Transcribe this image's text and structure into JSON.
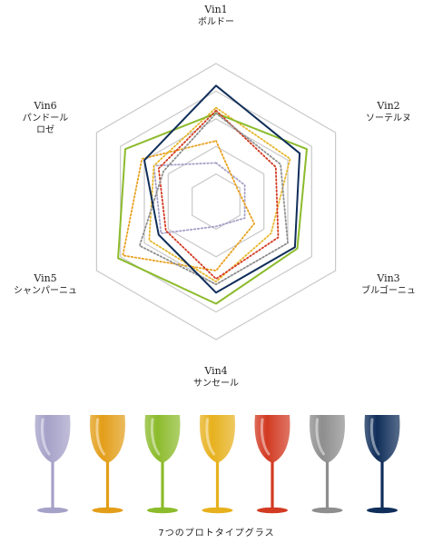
{
  "chart_data": {
    "type": "radar",
    "axes": [
      {
        "name": "Vin1",
        "sub": "ボルドー"
      },
      {
        "name": "Vin2",
        "sub": "ソーテルヌ"
      },
      {
        "name": "Vin3",
        "sub": "ブルゴーニュ"
      },
      {
        "name": "Vin4",
        "sub": "サンセール"
      },
      {
        "name": "Vin5",
        "sub": "シャンパーニュ"
      },
      {
        "name": "Vin6",
        "sub": "パンドール\nロゼ"
      }
    ],
    "rmax": 5,
    "rings": [
      1,
      2,
      3,
      4,
      5
    ],
    "grid": true,
    "series": [
      {
        "color": "#a6a1c8",
        "style": "dotted",
        "values": [
          1.4,
          1.2,
          1.2,
          0.9,
          2.3,
          2.6
        ]
      },
      {
        "color": "#e9a020",
        "style": "dotted",
        "values": [
          2.2,
          0.9,
          1.6,
          2.5,
          3.9,
          3.1
        ]
      },
      {
        "color": "#e7b62c",
        "style": "dotted",
        "values": [
          3.4,
          3.1,
          2.3,
          2.9,
          2.8,
          2.6
        ]
      },
      {
        "color": "#8cbb2c",
        "style": "solid",
        "values": [
          3.2,
          3.8,
          3.4,
          3.7,
          4.1,
          3.8
        ]
      },
      {
        "color": "#d23a22",
        "style": "dotted",
        "values": [
          3.3,
          2.5,
          2.6,
          2.8,
          2.1,
          2.4
        ]
      },
      {
        "color": "#8e8e8e",
        "style": "dotted",
        "values": [
          3.2,
          2.7,
          3.0,
          3.0,
          3.2,
          2.2
        ]
      },
      {
        "color": "#102e5a",
        "style": "solid",
        "values": [
          4.2,
          3.5,
          3.3,
          3.3,
          2.4,
          3.0
        ]
      }
    ]
  },
  "glasses": [
    {
      "color": "#a6a1c8"
    },
    {
      "color": "#e39e19"
    },
    {
      "color": "#8cbb2c"
    },
    {
      "color": "#e7b11e"
    },
    {
      "color": "#d23a22"
    },
    {
      "color": "#8e8e8e"
    },
    {
      "color": "#102e5a"
    }
  ],
  "caption": "7つのプロトタイプグラス"
}
